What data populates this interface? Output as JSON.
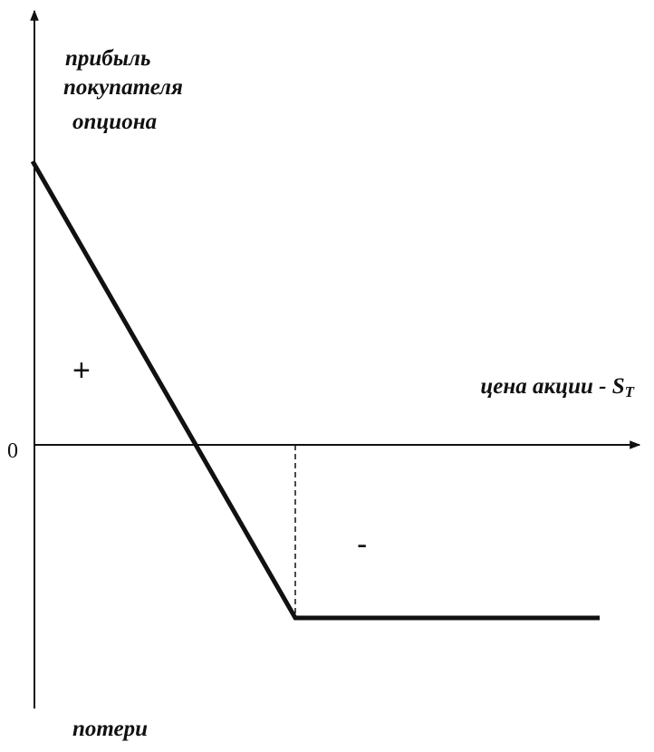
{
  "diagram": {
    "y_axis_label": [
      "прибыль",
      "покупателя",
      "опциона"
    ],
    "x_axis_label": {
      "text": "цена акции - S",
      "subscript": "T"
    },
    "origin_label": "0",
    "profit_sign": "+",
    "loss_sign": "-",
    "bottom_label": "потери"
  }
}
